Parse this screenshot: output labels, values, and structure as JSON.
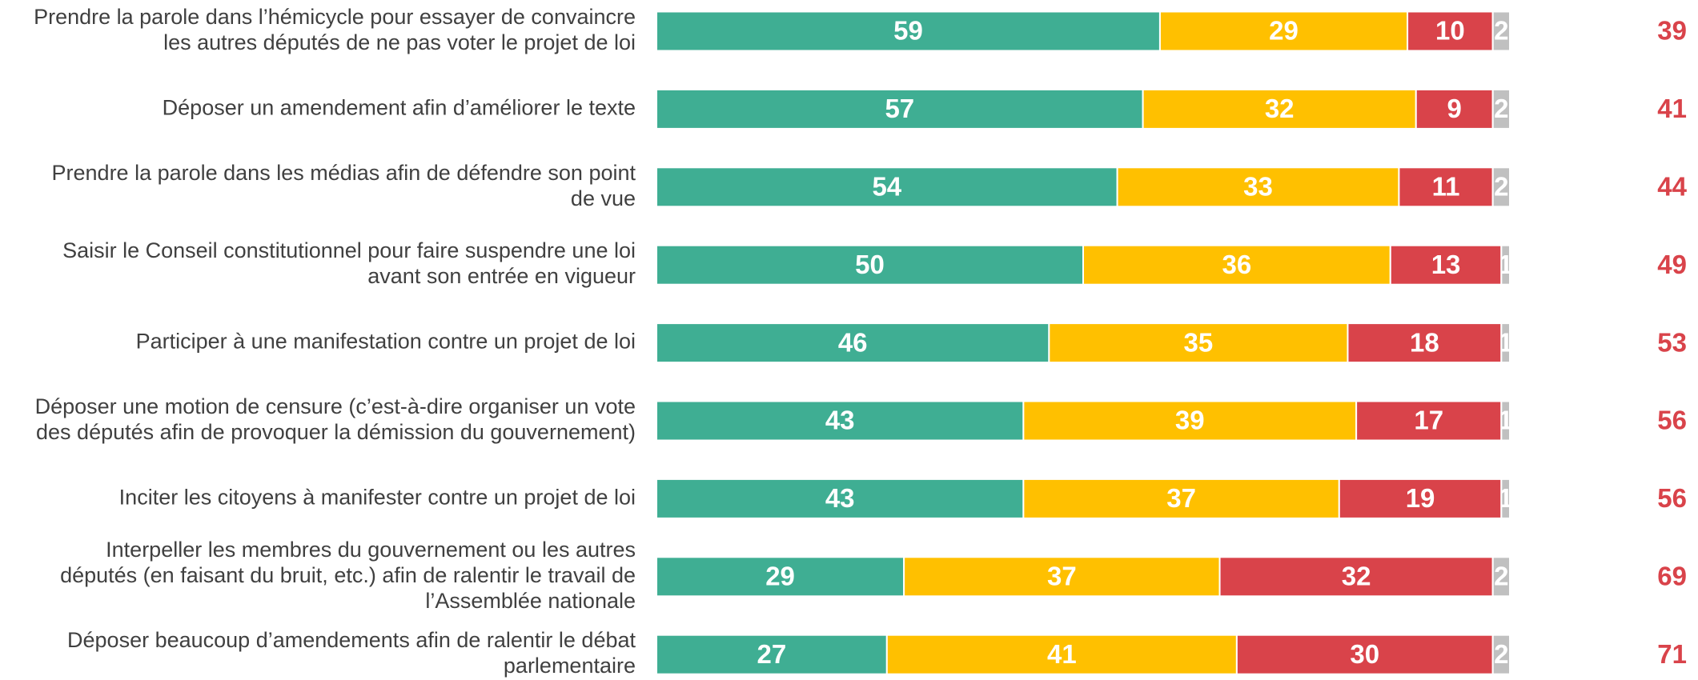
{
  "chart_data": {
    "type": "stacked_bar_horizontal",
    "categories": [
      [
        "Prendre la parole dans l’hémicycle pour essayer de convaincre",
        "les autres députés de ne pas voter le projet de loi"
      ],
      [
        "Déposer un amendement afin d’améliorer le texte"
      ],
      [
        "Prendre la parole dans les médias afin de défendre son point",
        "de vue"
      ],
      [
        "Saisir le Conseil constitutionnel pour faire suspendre une loi",
        "avant son entrée en vigueur"
      ],
      [
        "Participer à une manifestation contre un projet de loi"
      ],
      [
        "Déposer une motion de censure (c’est-à-dire organiser un vote",
        "des députés afin de provoquer la démission du gouvernement)"
      ],
      [
        "Inciter les citoyens à manifester contre un projet de loi"
      ],
      [
        "Interpeller les membres du gouvernement ou les autres",
        "députés (en faisant du bruit, etc.) afin de ralentir le travail de",
        "l’Assemblée nationale"
      ],
      [
        "Déposer beaucoup d’amendements afin de ralentir le débat",
        "parlementaire"
      ]
    ],
    "series": [
      {
        "color": "#3fae93",
        "values": [
          59,
          57,
          54,
          50,
          46,
          43,
          43,
          29,
          27
        ]
      },
      {
        "color": "#ffc000",
        "values": [
          29,
          32,
          33,
          36,
          35,
          39,
          37,
          37,
          41
        ]
      },
      {
        "color": "#d9434a",
        "values": [
          10,
          9,
          11,
          13,
          18,
          17,
          19,
          32,
          30
        ]
      },
      {
        "color": "#c0c0c0",
        "values": [
          2,
          2,
          2,
          1,
          1,
          1,
          1,
          2,
          2
        ]
      }
    ],
    "right_values": [
      39,
      41,
      44,
      49,
      53,
      56,
      56,
      69,
      71
    ],
    "right_color": "#d9434a",
    "xlim": [
      0,
      100
    ]
  }
}
